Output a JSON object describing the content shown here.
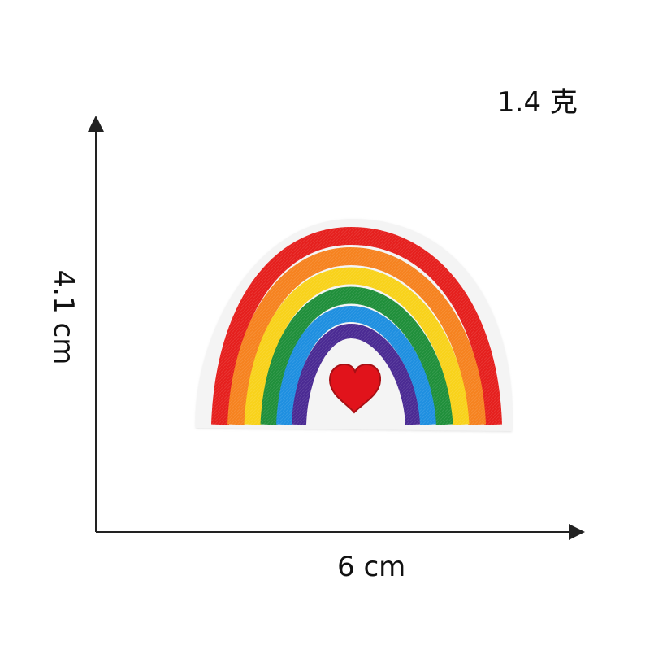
{
  "labels": {
    "weight": "1.4 克",
    "height": "4.1 cm",
    "width": "6 cm"
  },
  "product": {
    "type": "embroidered rainbow patch",
    "heart_color": "#e1131b",
    "felt_color": "#f4f4f4",
    "rainbow_colors": [
      "#e51f1d",
      "#f6821f",
      "#f8d21a",
      "#1f8f3a",
      "#1e8fe0",
      "#4a2a93"
    ]
  },
  "axis": {
    "color": "#222222"
  }
}
